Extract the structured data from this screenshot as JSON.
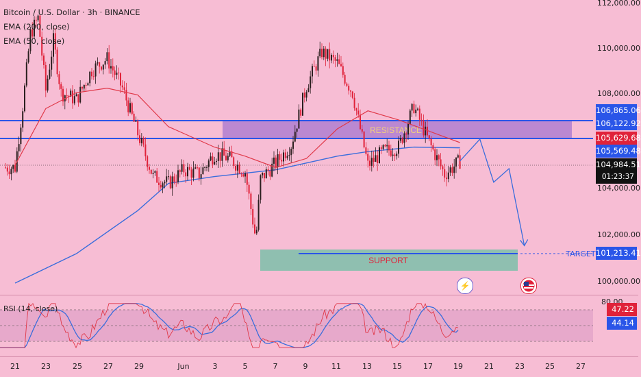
{
  "header": {
    "title": "Bitcoin / U.S. Dollar · 3h · BINANCE",
    "indicator_1": "EMA (200, close)",
    "indicator_2": "EMA (50, close)"
  },
  "rsi_panel": {
    "label": "RSI (14, close)",
    "axis_top": "80.00",
    "value_red": "47.22",
    "value_blue": "44.14"
  },
  "price_axis": {
    "ticks": [
      "112,000.00",
      "110,000.00",
      "108,000.00",
      "104,000.00",
      "102,000.00",
      "100,000.00"
    ]
  },
  "price_tags": {
    "upper_line": "106,865.06",
    "resistance_top": "106,122.92",
    "resistance_bottom": "105,629.68",
    "ema_value": "105,569.48",
    "last_price": "104,984.51",
    "countdown": "01:23:37",
    "target": "101,213.41"
  },
  "time_axis": {
    "labels": [
      "21",
      "23",
      "25",
      "27",
      "29",
      "Jun",
      "3",
      "5",
      "7",
      "9",
      "11",
      "13",
      "15",
      "17",
      "19",
      "21",
      "23",
      "25",
      "27"
    ]
  },
  "annotations": {
    "resistance": "RESISTANCE",
    "support": "SUPPORT",
    "target": "TARGET"
  },
  "colors": {
    "background": "#f7bdd4",
    "up_candle": "#2b1f1f",
    "down_candle": "#e0223a",
    "ema200": "#3a6ddc",
    "ema50": "#e03a4a",
    "resistance_zone": "#b07fd0",
    "support_zone": "#8fbfb0",
    "level_line": "#2a55e8",
    "last_price_tag": "#111111",
    "rsi_line": "#e03a4a",
    "rsi_ma": "#3a6ddc"
  },
  "chart_data": {
    "type": "candlestick",
    "title": "Bitcoin / U.S. Dollar · 3h · BINANCE",
    "y_unit": "USD",
    "ylim": [
      99300,
      112000
    ],
    "x_range": [
      "May 21",
      "Jun 27"
    ],
    "levels": {
      "upper_line": 106865.06,
      "resistance_top": 106122.92,
      "resistance_bottom": 105629.68,
      "ema_value": 105569.48,
      "last_price": 104984.51,
      "target": 101213.41
    },
    "zones": {
      "resistance": {
        "low": 105900,
        "high": 106850,
        "label": "RESISTANCE"
      },
      "support": {
        "low": 100500,
        "high": 101300,
        "label": "SUPPORT"
      }
    },
    "close_path": [
      [
        "May 21",
        104700
      ],
      [
        "May 21.5",
        107400
      ],
      [
        "May 22",
        110600
      ],
      [
        "May 22.5",
        111300
      ],
      [
        "May 23",
        108100
      ],
      [
        "May 23.5",
        110300
      ],
      [
        "May 24",
        108000
      ],
      [
        "May 25",
        107700
      ],
      [
        "May 26",
        109000
      ],
      [
        "May 27",
        109500
      ],
      [
        "May 28",
        108200
      ],
      [
        "May 29",
        106200
      ],
      [
        "May 30",
        104300
      ],
      [
        "May 31",
        104000
      ],
      [
        "Jun 1",
        104600
      ],
      [
        "Jun 2",
        104400
      ],
      [
        "Jun 3",
        105300
      ],
      [
        "Jun 4",
        105100
      ],
      [
        "Jun 5",
        104500
      ],
      [
        "Jun 5.7",
        101500
      ],
      [
        "Jun 6",
        104200
      ],
      [
        "Jun 7",
        104900
      ],
      [
        "Jun 8",
        105700
      ],
      [
        "Jun 9",
        108300
      ],
      [
        "Jun 10",
        109800
      ],
      [
        "Jun 11",
        109300
      ],
      [
        "Jun 12",
        108000
      ],
      [
        "Jun 13",
        104800
      ],
      [
        "Jun 14",
        105400
      ],
      [
        "Jun 15",
        105600
      ],
      [
        "Jun 16",
        107400
      ],
      [
        "Jun 17",
        105800
      ],
      [
        "Jun 18",
        104400
      ],
      [
        "Jun 19",
        104984.51
      ]
    ],
    "ema200": [
      [
        "May 21",
        99600
      ],
      [
        "May 25",
        100900
      ],
      [
        "May 29",
        102800
      ],
      [
        "May 31",
        104000
      ],
      [
        "Jun 3",
        104300
      ],
      [
        "Jun 7",
        104600
      ],
      [
        "Jun 11",
        105200
      ],
      [
        "Jun 13",
        105400
      ],
      [
        "Jun 16",
        105600
      ],
      [
        "Jun 19",
        105569.48
      ]
    ],
    "ema50": [
      [
        "May 21",
        104800
      ],
      [
        "May 23",
        107300
      ],
      [
        "May 25",
        108000
      ],
      [
        "May 27",
        108200
      ],
      [
        "May 29",
        107900
      ],
      [
        "May 31",
        106500
      ],
      [
        "Jun 3",
        105600
      ],
      [
        "Jun 5",
        105200
      ],
      [
        "Jun 7",
        104700
      ],
      [
        "Jun 9",
        105100
      ],
      [
        "Jun 11",
        106400
      ],
      [
        "Jun 13",
        107200
      ],
      [
        "Jun 15",
        106800
      ],
      [
        "Jun 17",
        106300
      ],
      [
        "Jun 19",
        105800
      ]
    ],
    "projection": [
      [
        "Jun 19",
        104984.51
      ],
      [
        "Jun 20.3",
        105950
      ],
      [
        "Jun 21.2",
        104050
      ],
      [
        "Jun 22.2",
        104650
      ],
      [
        "Jun 23.2",
        101250
      ]
    ],
    "rsi": {
      "name": "RSI (14, close)",
      "bands": [
        70,
        30
      ],
      "last_rsi": 47.22,
      "last_ma": 44.14
    }
  }
}
